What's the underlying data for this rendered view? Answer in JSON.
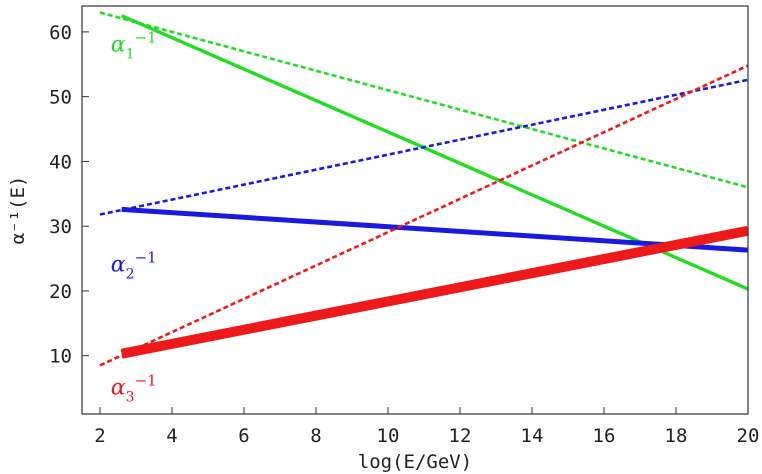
{
  "chart_data": {
    "type": "line",
    "xlabel": "log(E/GeV)",
    "ylabel": "α⁻¹(E)",
    "xlim": [
      1.5,
      20
    ],
    "ylim": [
      1,
      64
    ],
    "x_ticks": [
      "2",
      "4",
      "6",
      "8",
      "10",
      "12",
      "14",
      "16",
      "18",
      "20"
    ],
    "y_ticks": [
      "10",
      "20",
      "30",
      "40",
      "50",
      "60"
    ],
    "x_tick_values": [
      2,
      4,
      6,
      8,
      10,
      12,
      14,
      16,
      18,
      20
    ],
    "y_tick_values": [
      10,
      20,
      30,
      40,
      50,
      60
    ],
    "grid": false,
    "legend": "inline labels at left",
    "series": [
      {
        "label": "α₁⁻¹",
        "label_base": "α",
        "label_sub": "1",
        "label_sup": "−1",
        "color": "#22dd22",
        "label_at": [
          2.3,
          57
        ],
        "lines": [
          {
            "style": "dotted",
            "x": [
              2,
              20
            ],
            "y": [
              63.0,
              36.0
            ]
          },
          {
            "style": "solid",
            "x": [
              2.6,
              20
            ],
            "y": [
              62.5,
              20.3
            ]
          }
        ]
      },
      {
        "label": "α₂⁻¹",
        "label_base": "α",
        "label_sub": "2",
        "label_sup": "−1",
        "color": "#1a1adc",
        "label_at": [
          2.3,
          23
        ],
        "lines": [
          {
            "style": "dotted",
            "x": [
              2,
              20
            ],
            "y": [
              31.8,
              52.6
            ]
          },
          {
            "style": "solid",
            "x": [
              2.6,
              20
            ],
            "y": [
              32.6,
              26.3
            ]
          }
        ]
      },
      {
        "label": "α₃⁻¹",
        "label_base": "α",
        "label_sub": "3",
        "label_sup": "−1",
        "color": "#ee1a1a",
        "label_at": [
          2.3,
          4
        ],
        "lines": [
          {
            "style": "dotted",
            "x": [
              2,
              20
            ],
            "y": [
              8.5,
              54.8
            ]
          },
          {
            "style": "solid",
            "x": [
              2.6,
              20
            ],
            "y": [
              10.3,
              29.3
            ]
          }
        ]
      }
    ]
  }
}
